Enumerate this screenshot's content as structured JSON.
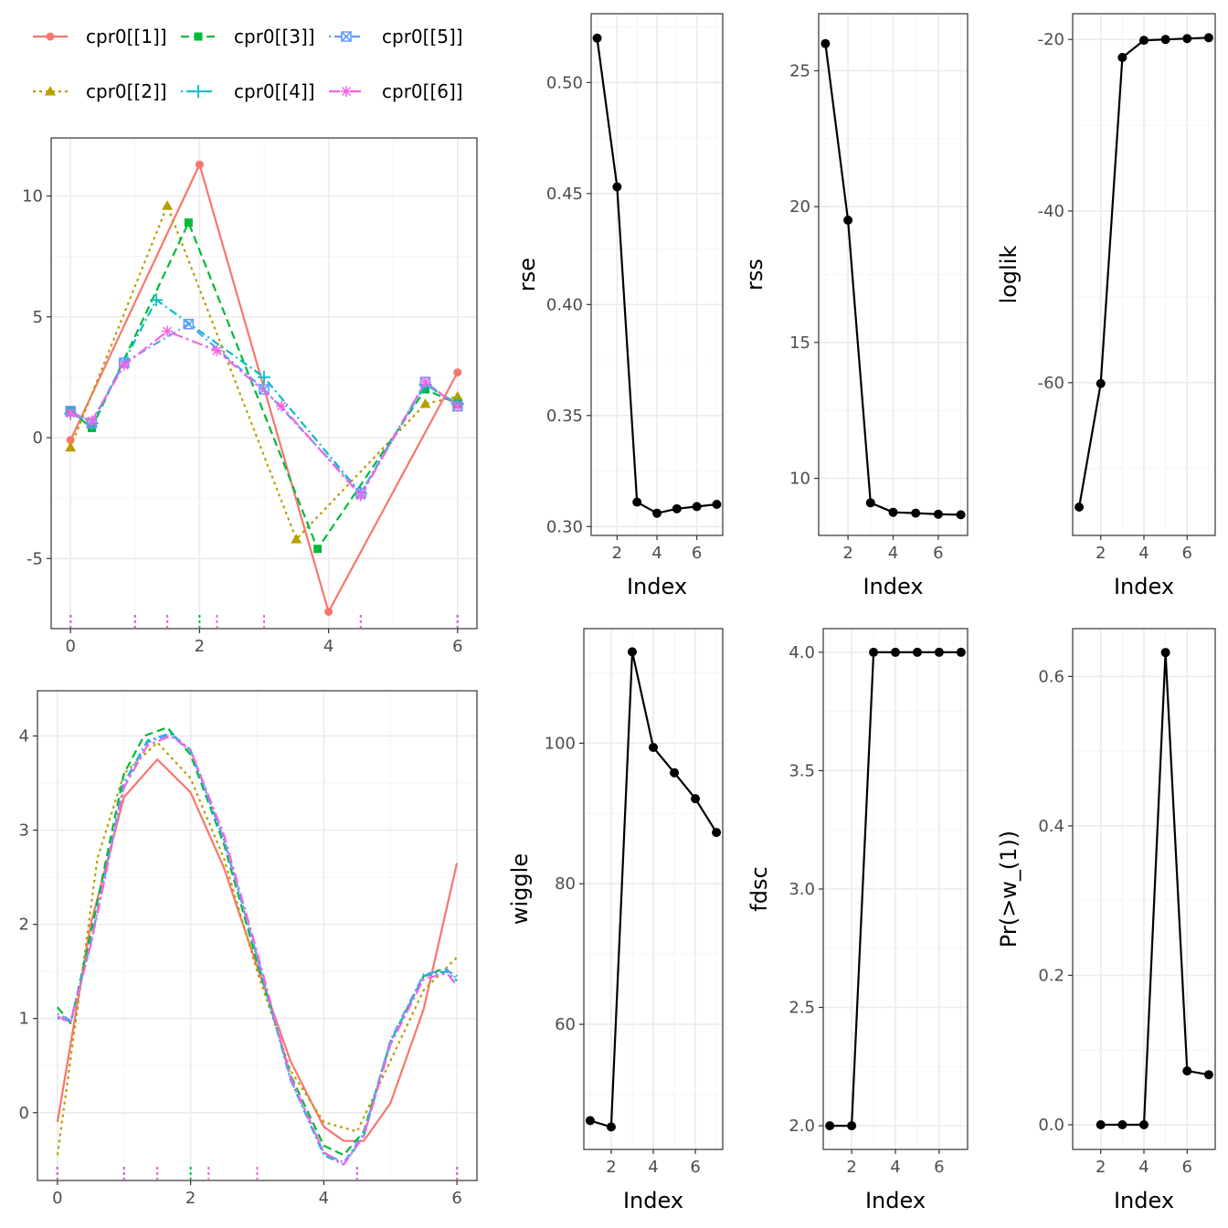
{
  "colors": {
    "c1": "#f8766d",
    "c2": "#b79f00",
    "c3": "#00ba38",
    "c4": "#00bfc4",
    "c5": "#619cff",
    "c6": "#f564e3",
    "metric": "#000000",
    "grid_major": "#ebebeb",
    "grid_minor": "#f5f5f5",
    "frame": "#333333"
  },
  "legend": {
    "position": "top-left",
    "items": [
      {
        "label": "cpr0[[1]]",
        "series": 0
      },
      {
        "label": "cpr0[[3]]",
        "series": 2
      },
      {
        "label": "cpr0[[5]]",
        "series": 4
      },
      {
        "label": "cpr0[[2]]",
        "series": 1
      },
      {
        "label": "cpr0[[4]]",
        "series": 3
      },
      {
        "label": "cpr0[[6]]",
        "series": 5
      }
    ]
  },
  "chart_data": [
    {
      "type": "line",
      "id": "control-polygons",
      "xlim": [
        -0.3,
        6.3
      ],
      "ylim": [
        -7.9,
        12.4
      ],
      "xticks": [
        0,
        2,
        4,
        6
      ],
      "yticks": [
        -5,
        0,
        5,
        10
      ],
      "grid": true,
      "series": [
        {
          "name": "cpr0[[1]]",
          "marker": "circle",
          "dash": "solid",
          "x": [
            0,
            2,
            4,
            6
          ],
          "y": [
            -0.1,
            11.3,
            -7.2,
            2.7
          ]
        },
        {
          "name": "cpr0[[2]]",
          "marker": "triangle",
          "dash": "dotted",
          "x": [
            0,
            1.5,
            3.5,
            5.5,
            6
          ],
          "y": [
            -0.4,
            9.6,
            -4.2,
            1.4,
            1.7
          ]
        },
        {
          "name": "cpr0[[3]]",
          "marker": "square",
          "dash": "dashed",
          "x": [
            0,
            0.33,
            1.83,
            3.83,
            5.5,
            6
          ],
          "y": [
            1.1,
            0.4,
            8.9,
            -4.6,
            2.0,
            1.4
          ]
        },
        {
          "name": "cpr0[[4]]",
          "marker": "plus",
          "dash": "dashdot",
          "x": [
            0,
            0.33,
            1.33,
            3,
            4.5,
            5.5,
            6
          ],
          "y": [
            1.0,
            0.6,
            5.7,
            2.5,
            -2.3,
            2.2,
            1.4
          ]
        },
        {
          "name": "cpr0[[5]]",
          "marker": "boxx",
          "dash": "dashdotted",
          "x": [
            0,
            0.33,
            0.83,
            1.83,
            3,
            4.5,
            5.5,
            6
          ],
          "y": [
            1.1,
            0.6,
            3.1,
            4.7,
            2.0,
            -2.3,
            2.3,
            1.3
          ]
        },
        {
          "name": "cpr0[[6]]",
          "marker": "asterisk",
          "dash": "longdash",
          "x": [
            0,
            0.33,
            0.83,
            1.5,
            2.27,
            3.27,
            4.5,
            5.5,
            6
          ],
          "y": [
            1.0,
            0.7,
            3.0,
            4.4,
            3.6,
            1.3,
            -2.4,
            2.3,
            1.3
          ]
        }
      ],
      "rugs": [
        {
          "series": 0,
          "x": [
            0,
            6
          ]
        },
        {
          "series": 1,
          "x": [
            0,
            1.5,
            6
          ]
        },
        {
          "series": 2,
          "x": [
            0,
            1,
            2,
            3,
            4.5,
            6
          ]
        },
        {
          "series": 3,
          "x": [
            0,
            1,
            3,
            4.5,
            6
          ]
        },
        {
          "series": 4,
          "x": [
            0,
            1,
            3,
            4.5,
            6
          ]
        },
        {
          "series": 5,
          "x": [
            0,
            1,
            1.5,
            2.27,
            3,
            4.5,
            6
          ]
        }
      ]
    },
    {
      "type": "line",
      "id": "spline-fits",
      "xlim": [
        -0.3,
        6.3
      ],
      "ylim": [
        -0.72,
        4.48
      ],
      "xticks": [
        0,
        2,
        4,
        6
      ],
      "yticks": [
        0,
        1,
        2,
        3,
        4
      ],
      "grid": true,
      "series": [
        {
          "name": "cpr0[[1]]",
          "dash": "solid",
          "x": [
            0,
            0.5,
            1,
            1.5,
            2,
            2.5,
            3,
            3.5,
            4,
            4.3,
            4.6,
            5,
            5.5,
            6
          ],
          "y": [
            -0.1,
            2.0,
            3.35,
            3.75,
            3.4,
            2.6,
            1.55,
            0.55,
            -0.15,
            -0.3,
            -0.3,
            0.1,
            1.1,
            2.65
          ]
        },
        {
          "name": "cpr0[[2]]",
          "dash": "dotted",
          "x": [
            0,
            0.3,
            0.6,
            1,
            1.5,
            2,
            2.5,
            3,
            3.5,
            4,
            4.5,
            5,
            5.5,
            6
          ],
          "y": [
            -0.45,
            1.1,
            2.7,
            3.6,
            3.93,
            3.55,
            2.7,
            1.5,
            0.45,
            -0.1,
            -0.2,
            0.55,
            1.3,
            1.65
          ]
        },
        {
          "name": "cpr0[[3]]",
          "dash": "dashed",
          "x": [
            0,
            0.2,
            0.5,
            1,
            1.3,
            1.65,
            2,
            2.5,
            3,
            3.5,
            4,
            4.3,
            4.6,
            5,
            5.5,
            5.8,
            6
          ],
          "y": [
            1.12,
            0.95,
            1.9,
            3.6,
            4.0,
            4.09,
            3.8,
            2.85,
            1.6,
            0.4,
            -0.35,
            -0.45,
            -0.2,
            0.75,
            1.45,
            1.53,
            1.45
          ]
        },
        {
          "name": "cpr0[[4]]",
          "dash": "dashdot",
          "x": [
            0,
            0.2,
            0.5,
            1,
            1.35,
            1.7,
            2,
            2.5,
            3,
            3.5,
            4,
            4.3,
            4.6,
            5,
            5.5,
            5.85,
            6
          ],
          "y": [
            1.0,
            0.97,
            1.8,
            3.5,
            3.95,
            4.03,
            3.85,
            2.9,
            1.65,
            0.35,
            -0.45,
            -0.55,
            -0.25,
            0.75,
            1.45,
            1.5,
            1.4
          ]
        },
        {
          "name": "cpr0[[5]]",
          "dash": "dashdotted",
          "x": [
            0,
            0.2,
            0.5,
            1,
            1.35,
            1.7,
            2,
            2.5,
            3,
            3.5,
            4,
            4.3,
            4.6,
            5,
            5.5,
            5.85,
            6
          ],
          "y": [
            1.05,
            0.98,
            1.8,
            3.48,
            3.93,
            4.02,
            3.84,
            2.9,
            1.66,
            0.36,
            -0.43,
            -0.53,
            -0.22,
            0.77,
            1.47,
            1.52,
            1.42
          ]
        },
        {
          "name": "cpr0[[6]]",
          "dash": "longdash",
          "x": [
            0,
            0.2,
            0.5,
            1,
            1.35,
            1.7,
            2,
            2.5,
            3,
            3.5,
            4,
            4.3,
            4.6,
            5,
            5.5,
            5.85,
            6
          ],
          "y": [
            1.02,
            0.96,
            1.78,
            3.45,
            3.9,
            4.0,
            3.85,
            2.95,
            1.7,
            0.38,
            -0.42,
            -0.55,
            -0.25,
            0.72,
            1.42,
            1.48,
            1.35
          ]
        }
      ],
      "rugs": [
        {
          "series": 0,
          "x": [
            0,
            6
          ]
        },
        {
          "series": 1,
          "x": [
            0,
            1.5,
            6
          ]
        },
        {
          "series": 2,
          "x": [
            0,
            1,
            2,
            3,
            4.5,
            6
          ]
        },
        {
          "series": 3,
          "x": [
            0,
            1,
            3,
            4.5,
            6
          ]
        },
        {
          "series": 4,
          "x": [
            0,
            1,
            3,
            4.5,
            6
          ]
        },
        {
          "series": 5,
          "x": [
            0,
            1,
            1.5,
            2.27,
            3,
            4.5,
            6
          ]
        }
      ]
    },
    {
      "type": "line",
      "id": "rse",
      "xlabel": "Index",
      "ylabel": "rse",
      "xlim": [
        0.7,
        7.3
      ],
      "ylim": [
        0.296,
        0.531
      ],
      "xticks": [
        2,
        4,
        6
      ],
      "yticks": [
        0.3,
        0.35,
        0.4,
        0.45,
        0.5
      ],
      "tick_labels": [
        "0.30",
        "0.35",
        "0.40",
        "0.45",
        "0.50"
      ],
      "x": [
        1,
        2,
        3,
        4,
        5,
        6,
        7
      ],
      "y": [
        0.52,
        0.453,
        0.311,
        0.306,
        0.308,
        0.309,
        0.31
      ]
    },
    {
      "type": "line",
      "id": "rss",
      "xlabel": "Index",
      "ylabel": "rss",
      "xlim": [
        0.7,
        7.3
      ],
      "ylim": [
        7.9,
        27.1
      ],
      "xticks": [
        2,
        4,
        6
      ],
      "yticks": [
        10,
        15,
        20,
        25
      ],
      "tick_labels": [
        "10",
        "15",
        "20",
        "25"
      ],
      "x": [
        1,
        2,
        3,
        4,
        5,
        6,
        7
      ],
      "y": [
        26.0,
        19.5,
        9.1,
        8.75,
        8.72,
        8.68,
        8.66
      ]
    },
    {
      "type": "line",
      "id": "loglik",
      "xlabel": "Index",
      "ylabel": "loglik",
      "xlim": [
        0.7,
        7.3
      ],
      "ylim": [
        -77.8,
        -17.0
      ],
      "xticks": [
        2,
        4,
        6
      ],
      "yticks": [
        -60,
        -40,
        -20
      ],
      "tick_labels": [
        "-60",
        "-40",
        "-20"
      ],
      "x": [
        1,
        2,
        3,
        4,
        5,
        6,
        7
      ],
      "y": [
        -74.5,
        -60.1,
        -22.1,
        -20.1,
        -20.0,
        -19.9,
        -19.8
      ]
    },
    {
      "type": "line",
      "id": "wiggle",
      "xlabel": "Index",
      "ylabel": "wiggle",
      "xlim": [
        0.7,
        7.3
      ],
      "ylim": [
        42.2,
        116.3
      ],
      "xticks": [
        2,
        4,
        6
      ],
      "yticks": [
        60,
        80,
        100
      ],
      "tick_labels": [
        "60",
        "80",
        "100"
      ],
      "x": [
        1,
        2,
        3,
        4,
        5,
        6,
        7
      ],
      "y": [
        46.3,
        45.4,
        113.0,
        99.4,
        95.8,
        92.1,
        87.3
      ]
    },
    {
      "type": "line",
      "id": "fdsc",
      "xlabel": "Index",
      "ylabel": "fdsc",
      "xlim": [
        0.7,
        7.3
      ],
      "ylim": [
        1.9,
        4.1
      ],
      "xticks": [
        2,
        4,
        6
      ],
      "yticks": [
        2.0,
        2.5,
        3.0,
        3.5,
        4.0
      ],
      "tick_labels": [
        "2.0",
        "2.5",
        "3.0",
        "3.5",
        "4.0"
      ],
      "x": [
        1,
        2,
        3,
        4,
        5,
        6,
        7
      ],
      "y": [
        2,
        2,
        4,
        4,
        4,
        4,
        4
      ]
    },
    {
      "type": "line",
      "id": "pr",
      "xlabel": "Index",
      "ylabel": "Pr(>w_(1))",
      "xlim": [
        0.7,
        7.3
      ],
      "ylim": [
        -0.033,
        0.664
      ],
      "xticks": [
        2,
        4,
        6
      ],
      "yticks": [
        0.0,
        0.2,
        0.4,
        0.6
      ],
      "tick_labels": [
        "0.0",
        "0.2",
        "0.4",
        "0.6"
      ],
      "x": [
        2,
        3,
        4,
        5,
        6,
        7
      ],
      "y": [
        0.0,
        0.0,
        0.0,
        0.632,
        0.072,
        0.067
      ]
    }
  ]
}
